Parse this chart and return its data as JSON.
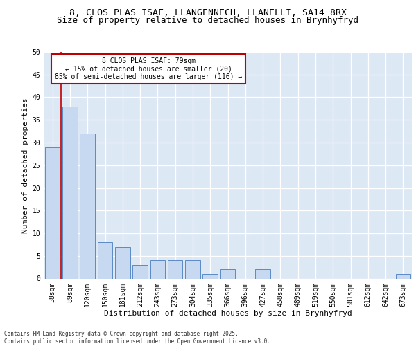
{
  "title1": "8, CLOS PLAS ISAF, LLANGENNECH, LLANELLI, SA14 8RX",
  "title2": "Size of property relative to detached houses in Brynhyfryd",
  "xlabel": "Distribution of detached houses by size in Brynhyfryd",
  "ylabel": "Number of detached properties",
  "categories": [
    "58sqm",
    "89sqm",
    "120sqm",
    "150sqm",
    "181sqm",
    "212sqm",
    "243sqm",
    "273sqm",
    "304sqm",
    "335sqm",
    "366sqm",
    "396sqm",
    "427sqm",
    "458sqm",
    "489sqm",
    "519sqm",
    "550sqm",
    "581sqm",
    "612sqm",
    "642sqm",
    "673sqm"
  ],
  "values": [
    29,
    38,
    32,
    8,
    7,
    3,
    4,
    4,
    4,
    1,
    2,
    0,
    2,
    0,
    0,
    0,
    0,
    0,
    0,
    0,
    1
  ],
  "bar_color": "#c6d9f0",
  "bar_edge_color": "#5a8ac6",
  "vline_color": "#c00000",
  "annotation_box_text": "8 CLOS PLAS ISAF: 79sqm\n← 15% of detached houses are smaller (20)\n85% of semi-detached houses are larger (116) →",
  "annotation_box_color": "#c00000",
  "background_color": "#dde8f5",
  "footer": "Contains HM Land Registry data © Crown copyright and database right 2025.\nContains public sector information licensed under the Open Government Licence v3.0.",
  "ylim": [
    0,
    50
  ],
  "yticks": [
    0,
    5,
    10,
    15,
    20,
    25,
    30,
    35,
    40,
    45,
    50
  ],
  "title_fontsize": 9.5,
  "subtitle_fontsize": 9,
  "axis_label_fontsize": 8,
  "tick_fontsize": 7
}
